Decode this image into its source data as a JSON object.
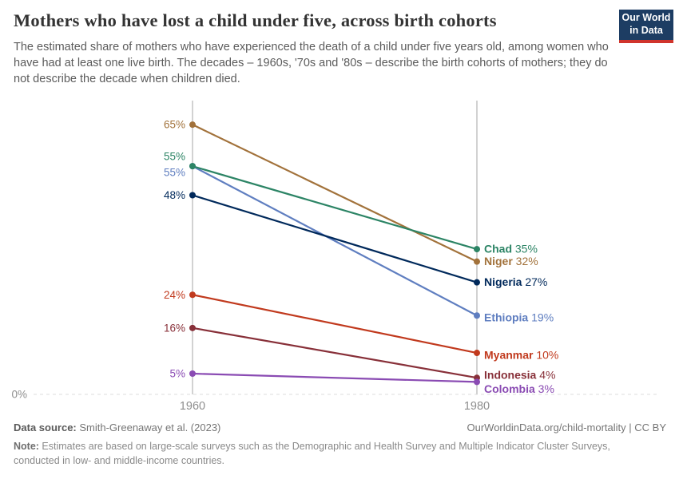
{
  "header": {
    "title": "Mothers who have lost a child under five, across birth cohorts",
    "subtitle": "The estimated share of mothers who have experienced the death of a child under five years old, among women who have had at least one live birth. The decades – 1960s, '70s and '80s – describe the birth cohorts of mothers; they do not describe the decade when children died.",
    "logo": {
      "line1": "Our World",
      "line2": "in Data",
      "bg": "#1D3D63",
      "stripe": "#D0342C"
    }
  },
  "chart_data": {
    "type": "line",
    "subtype": "slopechart",
    "x_labels": [
      "1960",
      "1980"
    ],
    "x": [
      1960,
      1980
    ],
    "ylim": [
      0,
      70.8
    ],
    "zero_label": "0%",
    "value_suffix": "%",
    "grid": "zero-line-only",
    "legend_position": "end-of-line-labels",
    "axis_colors": {
      "axis_line": "#D2D2D2",
      "zero_line": "#DCDCDC",
      "tick_text": "#8E8E8E"
    },
    "series": [
      {
        "name": "Ethiopia",
        "values": [
          55,
          19
        ],
        "color": "#5F7EC0",
        "left_dy": 8,
        "right_dy": 3
      },
      {
        "name": "Nigeria",
        "values": [
          48,
          27
        ],
        "color": "#00295B",
        "left_dy": 0,
        "right_dy": 0
      },
      {
        "name": "Niger",
        "values": [
          65,
          32
        ],
        "color": "#A2723B",
        "left_dy": 0,
        "right_dy": 0
      },
      {
        "name": "Chad",
        "values": [
          55,
          35
        ],
        "color": "#2C8465",
        "left_dy": -12,
        "right_dy": 0
      },
      {
        "name": "Myanmar",
        "values": [
          24,
          10
        ],
        "color": "#C13A1E",
        "left_dy": 0,
        "right_dy": 3
      },
      {
        "name": "Indonesia",
        "values": [
          16,
          4
        ],
        "color": "#883039",
        "left_dy": 0,
        "right_dy": -3
      },
      {
        "name": "Colombia",
        "values": [
          5,
          3
        ],
        "color": "#8A4BB3",
        "left_dy": 0,
        "right_dy": 9
      }
    ]
  },
  "footer": {
    "source_label": "Data source:",
    "source_value": " Smith-Greenaway et al. (2023)",
    "link": "OurWorldinData.org/child-mortality | CC BY",
    "note_label": "Note:",
    "note_value": " Estimates are based on large-scale surveys such as the Demographic and Health Survey and Multiple Indicator Cluster Surveys, conducted in low- and middle-income countries."
  }
}
